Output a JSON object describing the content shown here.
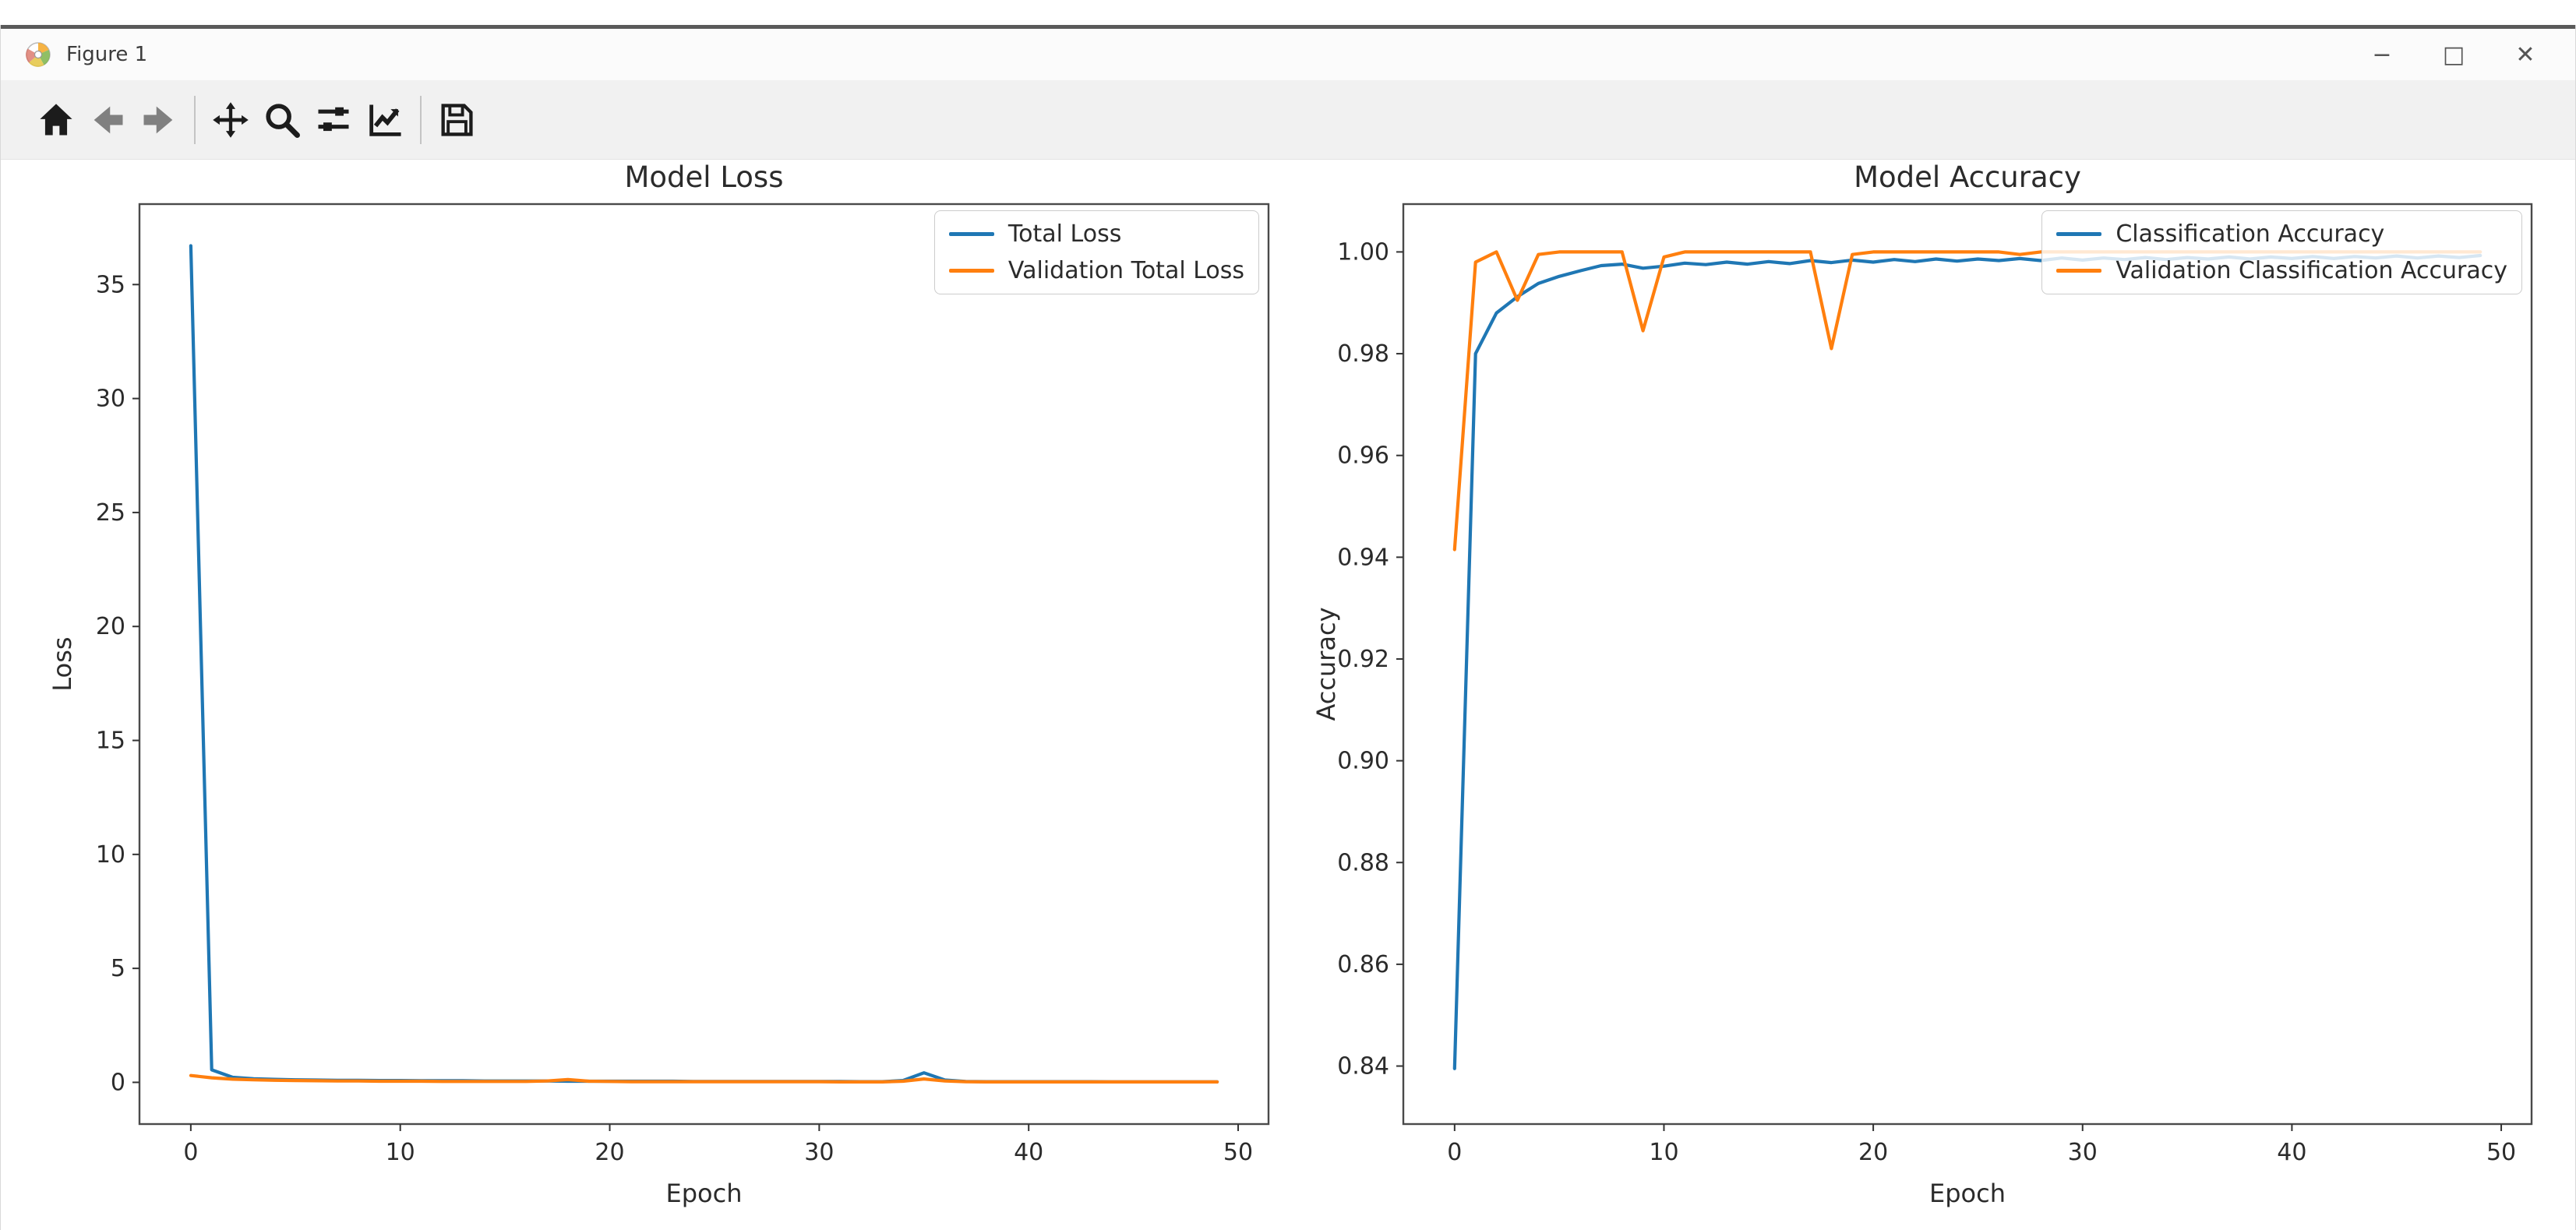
{
  "window": {
    "title": "Figure 1",
    "controls": {
      "minimize": "−",
      "maximize": "□",
      "close": "✕"
    }
  },
  "toolbar": {
    "buttons": [
      "home-icon",
      "back-icon",
      "forward-icon",
      "separator",
      "pan-icon",
      "zoom-icon",
      "subplots-icon",
      "edit-plot-icon",
      "separator",
      "save-icon"
    ]
  },
  "chart_data": [
    {
      "type": "line",
      "title": "Model Loss",
      "xlabel": "Epoch",
      "ylabel": "Loss",
      "xlim": [
        -2.45,
        51.45
      ],
      "ylim": [
        -1.83,
        38.53
      ],
      "xticks": [
        0,
        10,
        20,
        30,
        40,
        50
      ],
      "yticks": [
        0,
        5,
        10,
        15,
        20,
        25,
        30,
        35
      ],
      "ytick_decimals": 0,
      "grid": false,
      "legend_position": "upper right",
      "series": [
        {
          "name": "Total Loss",
          "color": "#1f77b4",
          "values": [
            36.7,
            0.55,
            0.22,
            0.16,
            0.13,
            0.11,
            0.1,
            0.09,
            0.09,
            0.08,
            0.08,
            0.07,
            0.07,
            0.07,
            0.06,
            0.06,
            0.06,
            0.06,
            0.05,
            0.05,
            0.05,
            0.05,
            0.05,
            0.05,
            0.04,
            0.04,
            0.04,
            0.04,
            0.04,
            0.04,
            0.04,
            0.04,
            0.03,
            0.03,
            0.08,
            0.42,
            0.1,
            0.04,
            0.03,
            0.03,
            0.03,
            0.03,
            0.03,
            0.03,
            0.02,
            0.02,
            0.02,
            0.02,
            0.02,
            0.02
          ]
        },
        {
          "name": "Validation Total Loss",
          "color": "#ff7f0e",
          "values": [
            0.3,
            0.2,
            0.14,
            0.11,
            0.09,
            0.08,
            0.07,
            0.06,
            0.06,
            0.05,
            0.05,
            0.05,
            0.04,
            0.04,
            0.04,
            0.04,
            0.04,
            0.06,
            0.12,
            0.05,
            0.04,
            0.03,
            0.03,
            0.03,
            0.03,
            0.03,
            0.03,
            0.03,
            0.03,
            0.03,
            0.03,
            0.02,
            0.02,
            0.02,
            0.05,
            0.15,
            0.06,
            0.03,
            0.02,
            0.02,
            0.02,
            0.02,
            0.02,
            0.02,
            0.02,
            0.02,
            0.02,
            0.02,
            0.02,
            0.02
          ]
        }
      ]
    },
    {
      "type": "line",
      "title": "Model Accuracy",
      "xlabel": "Epoch",
      "ylabel": "Accuracy",
      "xlim": [
        -2.45,
        51.45
      ],
      "ylim": [
        0.8286,
        1.0094
      ],
      "xticks": [
        0,
        10,
        20,
        30,
        40,
        50
      ],
      "yticks": [
        0.84,
        0.86,
        0.88,
        0.9,
        0.92,
        0.94,
        0.96,
        0.98,
        1.0
      ],
      "ytick_decimals": 2,
      "grid": false,
      "legend_position": "upper right",
      "series": [
        {
          "name": "Classification Accuracy",
          "color": "#1f77b4",
          "values": [
            0.8395,
            0.98,
            0.988,
            0.9912,
            0.9938,
            0.9952,
            0.9963,
            0.9973,
            0.9976,
            0.9968,
            0.9972,
            0.9978,
            0.9975,
            0.998,
            0.9976,
            0.9981,
            0.9977,
            0.9983,
            0.9979,
            0.9984,
            0.998,
            0.9985,
            0.9981,
            0.9986,
            0.9982,
            0.9986,
            0.9983,
            0.9987,
            0.9983,
            0.9988,
            0.9984,
            0.9988,
            0.9985,
            0.9989,
            0.9985,
            0.9989,
            0.9986,
            0.999,
            0.9986,
            0.999,
            0.9987,
            0.9991,
            0.9987,
            0.9991,
            0.9988,
            0.9992,
            0.9988,
            0.9992,
            0.9989,
            0.9993
          ]
        },
        {
          "name": "Validation Classification Accuracy",
          "color": "#ff7f0e",
          "values": [
            0.9415,
            0.998,
            1.0,
            0.9905,
            0.9995,
            1.0,
            1.0,
            1.0,
            1.0,
            0.9845,
            0.999,
            1.0,
            1.0,
            1.0,
            1.0,
            1.0,
            1.0,
            1.0,
            0.981,
            0.9995,
            1.0,
            1.0,
            1.0,
            1.0,
            1.0,
            1.0,
            1.0,
            0.9995,
            1.0,
            1.0,
            1.0,
            1.0,
            1.0,
            1.0,
            1.0,
            1.0,
            1.0,
            1.0,
            1.0,
            1.0,
            1.0,
            1.0,
            1.0,
            1.0,
            1.0,
            1.0,
            1.0,
            1.0,
            1.0,
            1.0
          ]
        }
      ]
    }
  ]
}
